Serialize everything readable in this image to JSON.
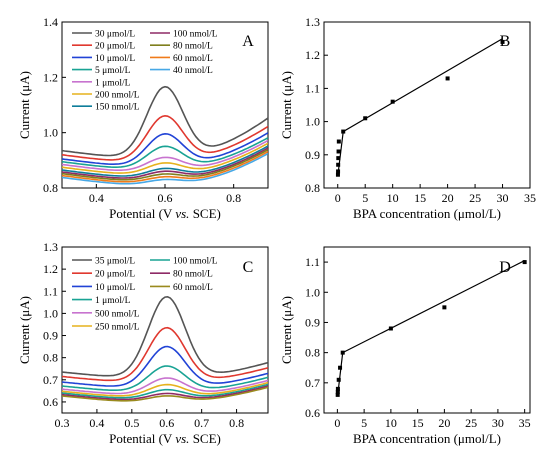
{
  "chart_data": [
    {
      "panel": "A",
      "type": "line",
      "xlabel_parts": [
        "Potential (V ",
        "vs.",
        " SCE)"
      ],
      "ylabel": "Current (μA)",
      "xlim": [
        0.3,
        0.9
      ],
      "ylim": [
        0.8,
        1.4
      ],
      "xticks": [
        "0.4",
        "0.6",
        "0.8"
      ],
      "yticks": [
        "0.8",
        "1.0",
        "1.2",
        "1.4"
      ],
      "series": [
        {
          "name": "30 μmol/L",
          "color": "#555555",
          "base": 0.935,
          "slope": 0.3,
          "peak": 0.26
        },
        {
          "name": "20 μmol/L",
          "color": "#e0382f",
          "base": 0.92,
          "slope": 0.26,
          "peak": 0.17
        },
        {
          "name": "10 μmol/L",
          "color": "#2143d6",
          "base": 0.905,
          "slope": 0.24,
          "peak": 0.12
        },
        {
          "name": "5 μmol/L",
          "color": "#19a394",
          "base": 0.895,
          "slope": 0.22,
          "peak": 0.085
        },
        {
          "name": "1 μmol/L",
          "color": "#c873cf",
          "base": 0.885,
          "slope": 0.22,
          "peak": 0.055
        },
        {
          "name": "200 nmol/L",
          "color": "#e6b21d",
          "base": 0.875,
          "slope": 0.22,
          "peak": 0.045
        },
        {
          "name": "150 nmol/L",
          "color": "#0e7d9a",
          "base": 0.865,
          "slope": 0.22,
          "peak": 0.035
        },
        {
          "name": "100 nmol/L",
          "color": "#8e2a66",
          "base": 0.858,
          "slope": 0.22,
          "peak": 0.032
        },
        {
          "name": "80 nmol/L",
          "color": "#7f7f1e",
          "base": 0.852,
          "slope": 0.22,
          "peak": 0.028
        },
        {
          "name": "60 nmol/L",
          "color": "#f07b1a",
          "base": 0.845,
          "slope": 0.22,
          "peak": 0.025
        },
        {
          "name": "40 nmol/L",
          "color": "#47a8e6",
          "base": 0.838,
          "slope": 0.22,
          "peak": 0.022
        }
      ]
    },
    {
      "panel": "B",
      "type": "scatter",
      "xlabel": "BPA concentration (μmol/L)",
      "ylabel": "Current (μA)",
      "xlim": [
        -2.5,
        35
      ],
      "ylim": [
        0.8,
        1.3
      ],
      "xticks": [
        "0",
        "5",
        "10",
        "15",
        "20",
        "25",
        "30",
        "35"
      ],
      "yticks": [
        "0.8",
        "0.9",
        "1.0",
        "1.1",
        "1.2",
        "1.3"
      ],
      "x": [
        0.04,
        0.06,
        0.08,
        0.1,
        0.15,
        0.2,
        1,
        5,
        10,
        20,
        30
      ],
      "y": [
        0.84,
        0.85,
        0.87,
        0.89,
        0.91,
        0.94,
        0.97,
        1.01,
        1.06,
        1.13,
        1.24
      ],
      "fit_lines": [
        {
          "x": [
            0.04,
            1
          ],
          "y": [
            0.84,
            0.97
          ]
        },
        {
          "x": [
            1,
            30
          ],
          "y": [
            0.97,
            1.25
          ]
        }
      ]
    },
    {
      "panel": "C",
      "type": "line",
      "xlabel_parts": [
        "Potential (V ",
        "vs.",
        " SCE)"
      ],
      "ylabel": "Current (μA)",
      "xlim": [
        0.3,
        0.89
      ],
      "ylim": [
        0.55,
        1.3
      ],
      "xticks": [
        "0.3",
        "0.4",
        "0.5",
        "0.6",
        "0.7",
        "0.8"
      ],
      "yticks": [
        "0.6",
        "0.7",
        "0.8",
        "0.9",
        "1.0",
        "1.1",
        "1.2",
        "1.3"
      ],
      "series": [
        {
          "name": "35 μmol/L",
          "color": "#555555",
          "base": 0.735,
          "slope": 0.12,
          "peak": 0.37
        },
        {
          "name": "20 μmol/L",
          "color": "#e0382f",
          "base": 0.715,
          "slope": 0.11,
          "peak": 0.25
        },
        {
          "name": "10 μmol/L",
          "color": "#2143d6",
          "base": 0.69,
          "slope": 0.11,
          "peak": 0.19
        },
        {
          "name": "1 μmol/L",
          "color": "#19a394",
          "base": 0.672,
          "slope": 0.11,
          "peak": 0.12
        },
        {
          "name": "500 nmol/L",
          "color": "#c873cf",
          "base": 0.658,
          "slope": 0.11,
          "peak": 0.08
        },
        {
          "name": "250 nmol/L",
          "color": "#e6b21d",
          "base": 0.648,
          "slope": 0.11,
          "peak": 0.06
        },
        {
          "name": "100 nmol/L",
          "color": "#19a394",
          "base": 0.64,
          "slope": 0.11,
          "peak": 0.045
        },
        {
          "name": "80 nmol/L",
          "color": "#8e2a66",
          "base": 0.633,
          "slope": 0.11,
          "peak": 0.035
        },
        {
          "name": "60 nmol/L",
          "color": "#9a8a1e",
          "base": 0.627,
          "slope": 0.11,
          "peak": 0.03
        }
      ]
    },
    {
      "panel": "D",
      "type": "scatter",
      "xlabel": "BPA concentration (μmol/L)",
      "ylabel": "Current (μA)",
      "xlim": [
        -2.5,
        36
      ],
      "ylim": [
        0.6,
        1.15
      ],
      "xticks": [
        "0",
        "5",
        "10",
        "15",
        "20",
        "25",
        "30",
        "35"
      ],
      "yticks": [
        "0.6",
        "0.7",
        "0.8",
        "0.9",
        "1.0",
        "1.1"
      ],
      "x": [
        0.06,
        0.08,
        0.1,
        0.25,
        0.5,
        1,
        10,
        20,
        35
      ],
      "y": [
        0.66,
        0.67,
        0.68,
        0.71,
        0.75,
        0.8,
        0.88,
        0.95,
        1.1
      ],
      "fit_lines": [
        {
          "x": [
            0.06,
            1
          ],
          "y": [
            0.66,
            0.8
          ]
        },
        {
          "x": [
            1,
            35
          ],
          "y": [
            0.8,
            1.105
          ]
        }
      ]
    }
  ]
}
